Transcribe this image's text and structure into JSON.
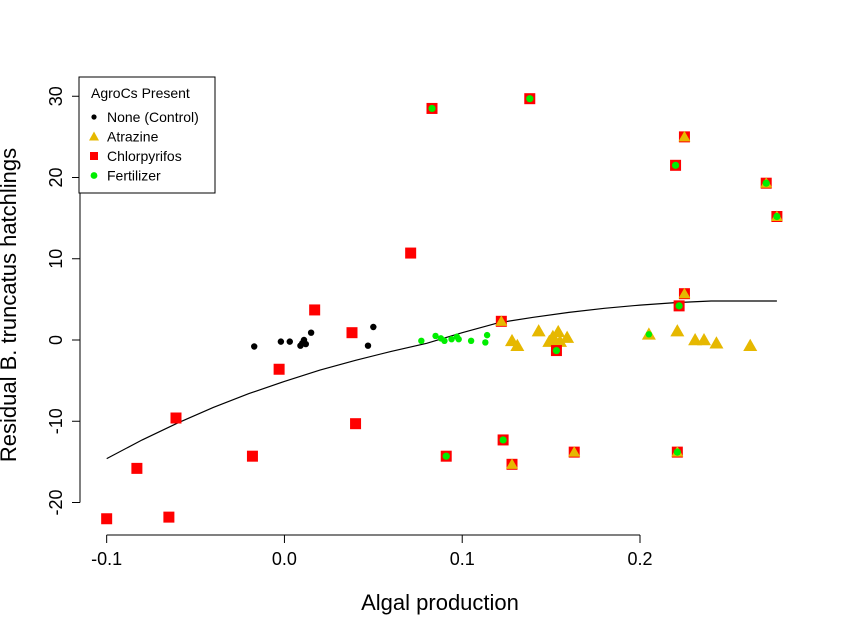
{
  "chart_data": {
    "type": "scatter",
    "title": "",
    "xlabel": "Algal production",
    "ylabel": "Residual B. truncatus hatchlings",
    "xlim": [
      -0.115,
      0.29
    ],
    "ylim": [
      -24,
      32
    ],
    "x_ticks": [
      -0.1,
      0.0,
      0.1,
      0.2
    ],
    "x_tick_labels": [
      "-0.1",
      "0.0",
      "0.1",
      "0.2"
    ],
    "y_ticks": [
      -20,
      -10,
      0,
      10,
      20,
      30
    ],
    "y_tick_labels": [
      "-20",
      "-10",
      "0",
      "10",
      "20",
      "30"
    ],
    "grid": false,
    "legend": {
      "title": "AgroCs Present",
      "placement": "top-left",
      "entries": [
        {
          "label": "None (Control)",
          "color": "#000000",
          "symbol": "circle-small"
        },
        {
          "label": "Atrazine",
          "color": "#E6B800",
          "symbol": "triangle"
        },
        {
          "label": "Chlorpyrifos",
          "color": "#FF0000",
          "symbol": "square"
        },
        {
          "label": "Fertilizer",
          "color": "#00EE00",
          "symbol": "circle"
        }
      ]
    },
    "points": [
      {
        "x": -0.017,
        "y": -0.8,
        "a": 0,
        "c": 0,
        "f": 0
      },
      {
        "x": -0.002,
        "y": -0.2,
        "a": 0,
        "c": 0,
        "f": 0
      },
      {
        "x": 0.003,
        "y": -0.2,
        "a": 0,
        "c": 0,
        "f": 0
      },
      {
        "x": 0.009,
        "y": -0.7,
        "a": 0,
        "c": 0,
        "f": 0
      },
      {
        "x": 0.01,
        "y": -0.4,
        "a": 0,
        "c": 0,
        "f": 0
      },
      {
        "x": 0.011,
        "y": 0.0,
        "a": 0,
        "c": 0,
        "f": 0
      },
      {
        "x": 0.012,
        "y": -0.5,
        "a": 0,
        "c": 0,
        "f": 0
      },
      {
        "x": 0.015,
        "y": 0.9,
        "a": 0,
        "c": 0,
        "f": 0
      },
      {
        "x": 0.047,
        "y": -0.7,
        "a": 0,
        "c": 0,
        "f": 0
      },
      {
        "x": 0.05,
        "y": 1.6,
        "a": 0,
        "c": 0,
        "f": 0
      },
      {
        "x": -0.1,
        "y": -22.0,
        "a": 0,
        "c": 1,
        "f": 0
      },
      {
        "x": -0.083,
        "y": -15.8,
        "a": 0,
        "c": 1,
        "f": 0
      },
      {
        "x": -0.065,
        "y": -21.8,
        "a": 0,
        "c": 1,
        "f": 0
      },
      {
        "x": -0.061,
        "y": -9.6,
        "a": 0,
        "c": 1,
        "f": 0
      },
      {
        "x": -0.018,
        "y": -14.3,
        "a": 0,
        "c": 1,
        "f": 0
      },
      {
        "x": -0.003,
        "y": -3.6,
        "a": 0,
        "c": 1,
        "f": 0
      },
      {
        "x": 0.017,
        "y": 3.7,
        "a": 0,
        "c": 1,
        "f": 0
      },
      {
        "x": 0.038,
        "y": 0.9,
        "a": 0,
        "c": 1,
        "f": 0
      },
      {
        "x": 0.04,
        "y": -10.3,
        "a": 0,
        "c": 1,
        "f": 0
      },
      {
        "x": 0.071,
        "y": 10.7,
        "a": 0,
        "c": 1,
        "f": 0
      },
      {
        "x": 0.077,
        "y": -0.1,
        "a": 0,
        "c": 0,
        "f": 1
      },
      {
        "x": 0.085,
        "y": 0.5,
        "a": 0,
        "c": 0,
        "f": 1
      },
      {
        "x": 0.088,
        "y": 0.2,
        "a": 0,
        "c": 0,
        "f": 1
      },
      {
        "x": 0.09,
        "y": -0.1,
        "a": 0,
        "c": 0,
        "f": 1
      },
      {
        "x": 0.094,
        "y": 0.1,
        "a": 0,
        "c": 0,
        "f": 1
      },
      {
        "x": 0.097,
        "y": 0.4,
        "a": 0,
        "c": 0,
        "f": 1
      },
      {
        "x": 0.098,
        "y": 0.1,
        "a": 0,
        "c": 0,
        "f": 1
      },
      {
        "x": 0.105,
        "y": -0.1,
        "a": 0,
        "c": 0,
        "f": 1
      },
      {
        "x": 0.113,
        "y": -0.3,
        "a": 0,
        "c": 0,
        "f": 1
      },
      {
        "x": 0.114,
        "y": 0.6,
        "a": 0,
        "c": 0,
        "f": 1
      },
      {
        "x": 0.128,
        "y": -0.1,
        "a": 1,
        "c": 0,
        "f": 0
      },
      {
        "x": 0.131,
        "y": -0.7,
        "a": 1,
        "c": 0,
        "f": 0
      },
      {
        "x": 0.143,
        "y": 1.1,
        "a": 1,
        "c": 0,
        "f": 0
      },
      {
        "x": 0.149,
        "y": -0.2,
        "a": 1,
        "c": 0,
        "f": 0
      },
      {
        "x": 0.151,
        "y": 0.4,
        "a": 1,
        "c": 0,
        "f": 0
      },
      {
        "x": 0.152,
        "y": -0.1,
        "a": 1,
        "c": 0,
        "f": 0
      },
      {
        "x": 0.154,
        "y": 1.0,
        "a": 1,
        "c": 0,
        "f": 0
      },
      {
        "x": 0.159,
        "y": 0.3,
        "a": 1,
        "c": 0,
        "f": 0
      },
      {
        "x": 0.155,
        "y": -0.2,
        "a": 1,
        "c": 0,
        "f": 0
      },
      {
        "x": 0.221,
        "y": 1.1,
        "a": 1,
        "c": 0,
        "f": 0
      },
      {
        "x": 0.231,
        "y": 0.0,
        "a": 1,
        "c": 0,
        "f": 0
      },
      {
        "x": 0.236,
        "y": 0.0,
        "a": 1,
        "c": 0,
        "f": 0
      },
      {
        "x": 0.243,
        "y": -0.4,
        "a": 1,
        "c": 0,
        "f": 0
      },
      {
        "x": 0.262,
        "y": -0.7,
        "a": 1,
        "c": 0,
        "f": 0
      },
      {
        "x": 0.083,
        "y": 28.5,
        "a": 0,
        "c": 1,
        "f": 1
      },
      {
        "x": 0.138,
        "y": 29.7,
        "a": 0,
        "c": 1,
        "f": 1
      },
      {
        "x": 0.091,
        "y": -14.3,
        "a": 0,
        "c": 1,
        "f": 1
      },
      {
        "x": 0.123,
        "y": -12.3,
        "a": 0,
        "c": 1,
        "f": 1
      },
      {
        "x": 0.22,
        "y": 21.5,
        "a": 0,
        "c": 1,
        "f": 1
      },
      {
        "x": 0.222,
        "y": 4.2,
        "a": 0,
        "c": 1,
        "f": 1
      },
      {
        "x": 0.153,
        "y": -1.3,
        "a": 0,
        "c": 1,
        "f": 1
      },
      {
        "x": 0.122,
        "y": 2.3,
        "a": 1,
        "c": 1,
        "f": 0
      },
      {
        "x": 0.128,
        "y": -15.3,
        "a": 1,
        "c": 1,
        "f": 0
      },
      {
        "x": 0.163,
        "y": -13.8,
        "a": 1,
        "c": 1,
        "f": 0
      },
      {
        "x": 0.225,
        "y": 25.0,
        "a": 1,
        "c": 1,
        "f": 0
      },
      {
        "x": 0.225,
        "y": 5.7,
        "a": 1,
        "c": 1,
        "f": 0
      },
      {
        "x": 0.205,
        "y": 0.7,
        "a": 1,
        "c": 0,
        "f": 1
      },
      {
        "x": 0.221,
        "y": -13.8,
        "a": 1,
        "c": 1,
        "f": 1
      },
      {
        "x": 0.271,
        "y": 19.3,
        "a": 1,
        "c": 1,
        "f": 1
      },
      {
        "x": 0.277,
        "y": 15.2,
        "a": 1,
        "c": 1,
        "f": 1
      }
    ],
    "fit_line": {
      "x": [
        -0.1,
        -0.08,
        -0.06,
        -0.04,
        -0.02,
        0.0,
        0.02,
        0.04,
        0.06,
        0.08,
        0.1,
        0.12,
        0.14,
        0.16,
        0.18,
        0.2,
        0.22,
        0.24,
        0.26,
        0.277
      ],
      "y": [
        -14.6,
        -12.3,
        -10.2,
        -8.3,
        -6.6,
        -5.1,
        -3.7,
        -2.5,
        -1.4,
        -0.4,
        0.9,
        2.1,
        2.8,
        3.4,
        3.9,
        4.3,
        4.6,
        4.8,
        4.8,
        4.8
      ]
    }
  }
}
